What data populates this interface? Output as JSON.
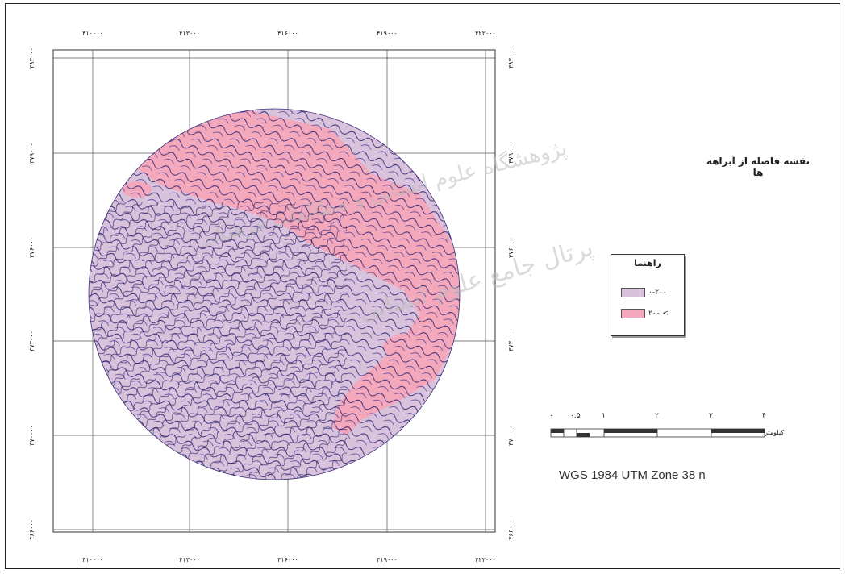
{
  "map": {
    "title": "نقشه فاصله از آبراهه ها",
    "projection": "WGS 1984 UTM Zone 38 n",
    "x_ticks": [
      "۴۱۰۰۰۰",
      "۴۱۳۰۰۰",
      "۴۱۶۰۰۰",
      "۴۱۹۰۰۰",
      "۴۲۲۰۰۰"
    ],
    "y_ticks": [
      "۳۸۳۰۰۰",
      "۳۷۹۰۰۰",
      "۳۷۶۰۰۰",
      "۳۷۳۰۰۰",
      "۳۷۰۰۰۰",
      "۳۶۶۰۰۰"
    ],
    "legend": {
      "title": "راهنما",
      "items": [
        {
          "label": "۰-۲۰۰",
          "color": "#d8c2dc"
        },
        {
          "label": "۲۰۰ <",
          "color": "#f4a8bc"
        }
      ]
    },
    "scale": {
      "labels": [
        "۰",
        "۰.۵",
        "۱",
        "۲",
        "۳",
        "۴"
      ],
      "unit": "کیلومتر"
    },
    "watermark": {
      "line1": "پژوهشگاه علوم انسانی و مطالعات فرهنگی",
      "line2": "پرتال جامع علوم انسانی"
    },
    "colors": {
      "base": "#d8c2dc",
      "far": "#f4a8bc",
      "stream": "#2b1f6e"
    }
  }
}
